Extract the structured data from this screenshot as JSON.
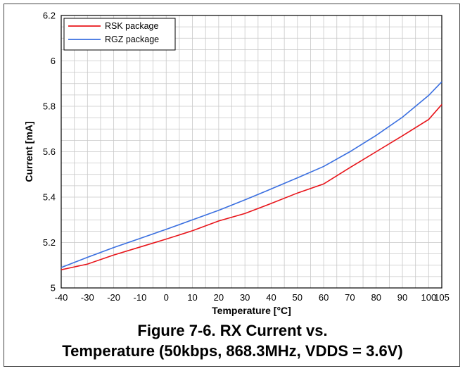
{
  "chart_data": {
    "type": "line",
    "title": "",
    "xlabel": "Temperature [°C]",
    "ylabel": "Current [mA]",
    "x": [
      -40,
      -30,
      -20,
      -10,
      0,
      10,
      20,
      30,
      40,
      50,
      60,
      70,
      80,
      90,
      100,
      105
    ],
    "xlim": [
      -40,
      105
    ],
    "ylim": [
      5,
      6.2
    ],
    "x_ticks": [
      "-40",
      "-30",
      "-20",
      "-10",
      "0",
      "10",
      "20",
      "30",
      "40",
      "50",
      "60",
      "70",
      "80",
      "90",
      "100",
      "105"
    ],
    "y_ticks": [
      "5",
      "5.2",
      "5.4",
      "5.6",
      "5.8",
      "6",
      "6.2"
    ],
    "grid": true,
    "legend_position": "top-left",
    "series": [
      {
        "name": "RSK package",
        "color": "#e8141a",
        "values": [
          5.08,
          5.105,
          5.145,
          5.18,
          5.215,
          5.252,
          5.295,
          5.328,
          5.372,
          5.418,
          5.458,
          5.53,
          5.6,
          5.67,
          5.742,
          5.808
        ]
      },
      {
        "name": "RGZ package",
        "color": "#3a6fe0",
        "values": [
          5.09,
          5.135,
          5.178,
          5.218,
          5.258,
          5.3,
          5.342,
          5.388,
          5.436,
          5.485,
          5.535,
          5.6,
          5.672,
          5.752,
          5.848,
          5.908
        ]
      }
    ]
  },
  "caption": {
    "line1": "Figure 7-6. RX Current vs.",
    "line2": "Temperature (50kbps, 868.3MHz, VDDS = 3.6V)"
  }
}
